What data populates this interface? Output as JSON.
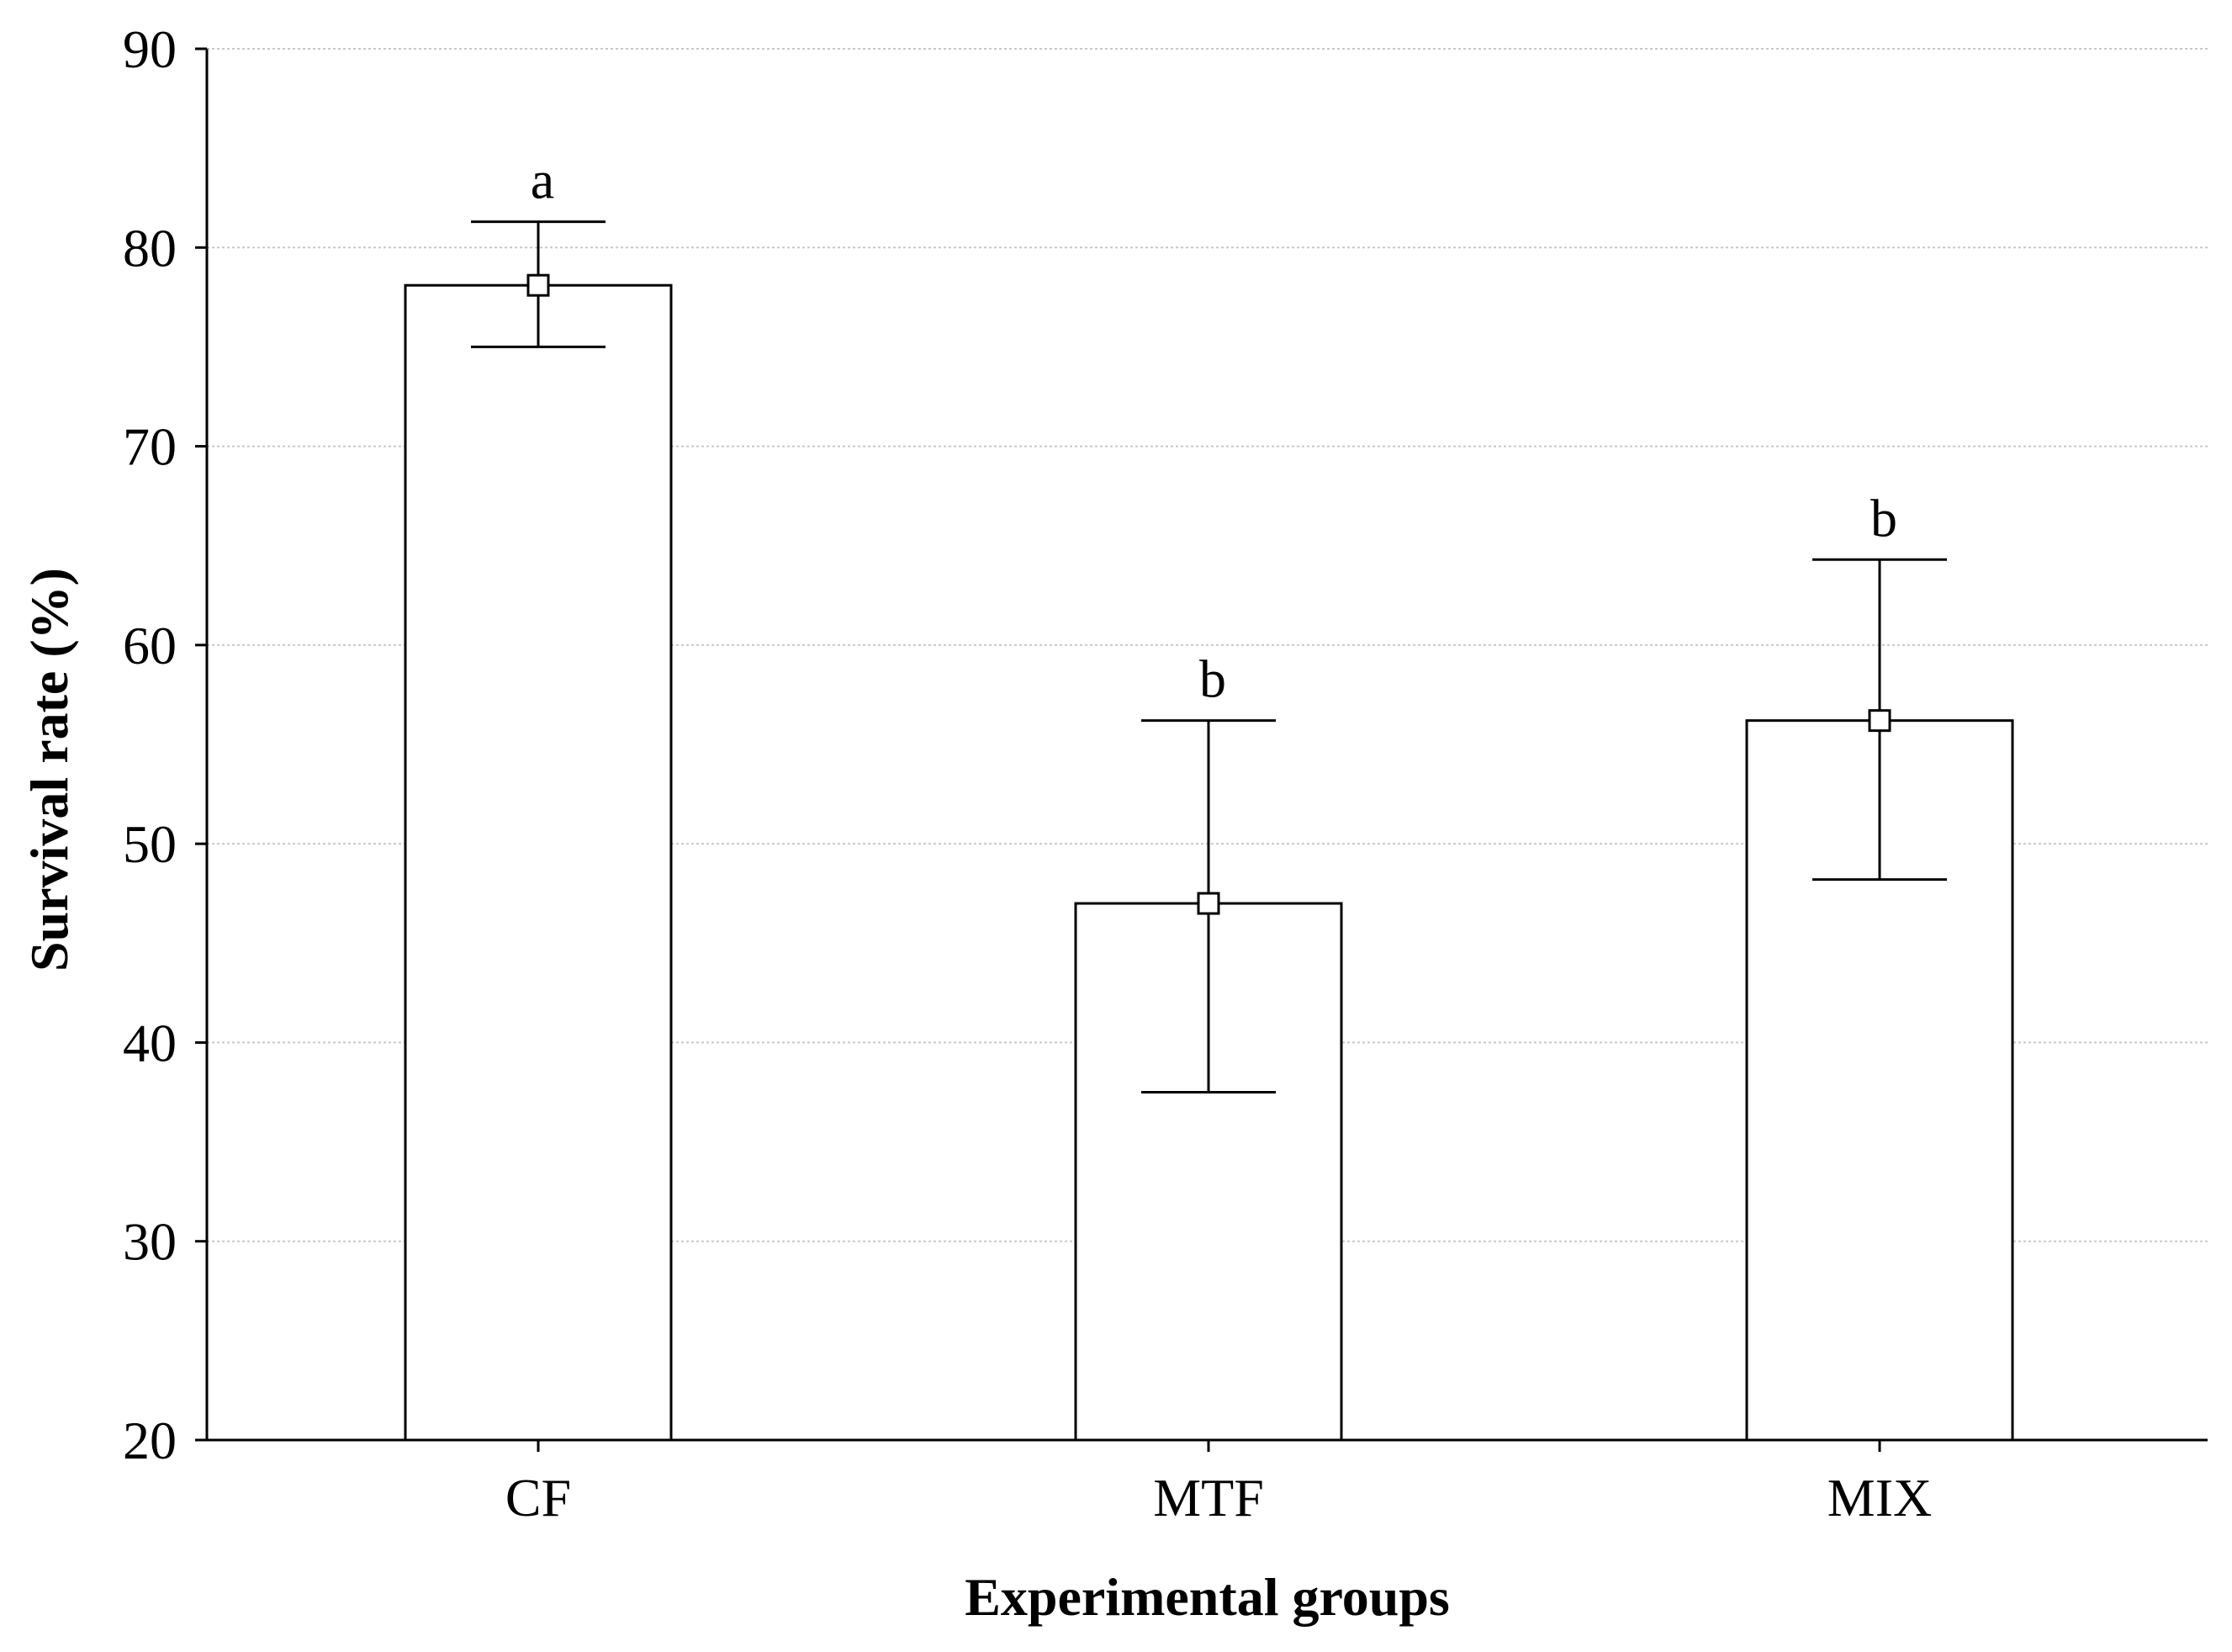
{
  "chart_data": {
    "type": "bar",
    "title": "",
    "xlabel": "Experimental groups",
    "ylabel": "Survival rate (%)",
    "ylim": [
      20,
      90
    ],
    "yticks": [
      20,
      30,
      40,
      50,
      60,
      70,
      80,
      90
    ],
    "ytick_labels": [
      "20",
      "30",
      "40",
      "50",
      "60",
      "70",
      "80",
      "90"
    ],
    "grid": true,
    "categories": [
      "CF",
      "MTF",
      "MIX"
    ],
    "values": [
      78.1,
      47.0,
      56.2
    ],
    "error_upper": [
      81.3,
      56.2,
      64.3
    ],
    "error_lower": [
      75.0,
      37.5,
      48.2
    ],
    "significance_letters": [
      "a",
      "b",
      "b"
    ],
    "colors": {
      "bar_fill": "#ffffff",
      "stroke": "#000000",
      "grid": "#c8c8c8"
    }
  }
}
